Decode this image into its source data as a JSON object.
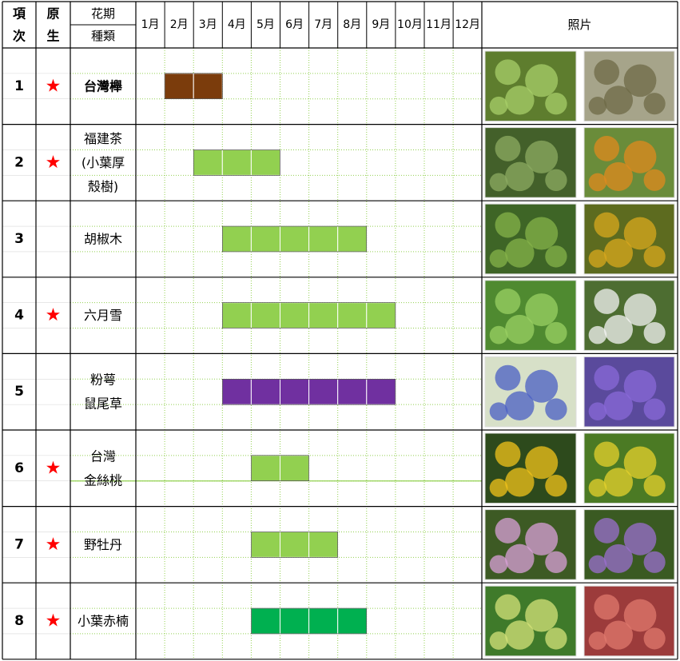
{
  "header": {
    "col_index": [
      "項",
      "次"
    ],
    "col_native": [
      "原",
      "生"
    ],
    "period_label": "花期",
    "species_label": "種類",
    "photo_label": "照片"
  },
  "months": [
    "1月",
    "2月",
    "3月",
    "4月",
    "5月",
    "6月",
    "7月",
    "8月",
    "9月",
    "10月",
    "11月",
    "12月"
  ],
  "native_mark": "★",
  "colors": {
    "brown": "#7b3c0c",
    "light_green": "#92d050",
    "purple": "#7030a0",
    "green": "#00b050",
    "star": "#ff0000",
    "dotted_grid": "#92d050"
  },
  "rows": [
    {
      "no": "1",
      "native": true,
      "name": [
        "台灣櫸"
      ],
      "bold": true,
      "bloom": {
        "start": 2,
        "end": 3
      },
      "color": "brown",
      "photos": [
        {
          "icon": "leaf-berry-photo",
          "bg": "#5e7d2e",
          "fg": "#a8cf6a"
        },
        {
          "icon": "tree-photo",
          "bg": "#a6a48a",
          "fg": "#6d6a45"
        }
      ]
    },
    {
      "no": "2",
      "native": true,
      "name": [
        "福建茶",
        "(小葉厚",
        "殼樹)"
      ],
      "bold": false,
      "bloom": {
        "start": 3,
        "end": 5
      },
      "color": "light_green",
      "photos": [
        {
          "icon": "shrub-leaves-photo",
          "bg": "#43602a",
          "fg": "#8cab62"
        },
        {
          "icon": "orange-berry-photo",
          "bg": "#6a8c3a",
          "fg": "#e08a1e"
        }
      ]
    },
    {
      "no": "3",
      "native": false,
      "name": [
        "胡椒木"
      ],
      "bold": false,
      "bloom": {
        "start": 4,
        "end": 8
      },
      "color": "light_green",
      "photos": [
        {
          "icon": "shrub-photo",
          "bg": "#3e6526",
          "fg": "#86b34a"
        },
        {
          "icon": "yellow-fruit-photo",
          "bg": "#5d6b1f",
          "fg": "#d9a81e"
        }
      ]
    },
    {
      "no": "4",
      "native": true,
      "name": [
        "六月雪"
      ],
      "bold": false,
      "bloom": {
        "start": 4,
        "end": 9
      },
      "color": "light_green",
      "photos": [
        {
          "icon": "shrub-photo",
          "bg": "#4f8a30",
          "fg": "#9ad063"
        },
        {
          "icon": "white-flower-photo",
          "bg": "#4d6d31",
          "fg": "#f4f4f4"
        }
      ]
    },
    {
      "no": "5",
      "native": false,
      "name": [
        "粉萼",
        "鼠尾草"
      ],
      "bold": false,
      "bloom": {
        "start": 4,
        "end": 9
      },
      "color": "purple",
      "photos": [
        {
          "icon": "blue-salvia-photo",
          "bg": "#d7e0c8",
          "fg": "#4a5fc4"
        },
        {
          "icon": "purple-salvia-photo",
          "bg": "#5a4a9c",
          "fg": "#8a6ad8"
        }
      ]
    },
    {
      "no": "6",
      "native": true,
      "name": [
        "台灣",
        "金絲桃"
      ],
      "bold": false,
      "bloom": {
        "start": 5,
        "end": 6
      },
      "color": "light_green",
      "photos": [
        {
          "icon": "yellow-flower-photo",
          "bg": "#2d4a1c",
          "fg": "#f2c31a"
        },
        {
          "icon": "yellow-shrub-photo",
          "bg": "#4b7a24",
          "fg": "#e6d12c"
        }
      ]
    },
    {
      "no": "7",
      "native": true,
      "name": [
        "野牡丹"
      ],
      "bold": false,
      "bloom": {
        "start": 5,
        "end": 7
      },
      "color": "light_green",
      "photos": [
        {
          "icon": "pink-flower-photo",
          "bg": "#3d5a24",
          "fg": "#d9a0d8"
        },
        {
          "icon": "violet-flowers-photo",
          "bg": "#3a5a22",
          "fg": "#9b6fd0"
        }
      ]
    },
    {
      "no": "8",
      "native": true,
      "name": [
        "小葉赤楠"
      ],
      "bold": false,
      "bloom": {
        "start": 5,
        "end": 8
      },
      "color": "green",
      "photos": [
        {
          "icon": "buds-photo",
          "bg": "#3f7a2a",
          "fg": "#d5e37a"
        },
        {
          "icon": "red-foliage-photo",
          "bg": "#9c3b3b",
          "fg": "#e07a6e"
        }
      ]
    }
  ]
}
